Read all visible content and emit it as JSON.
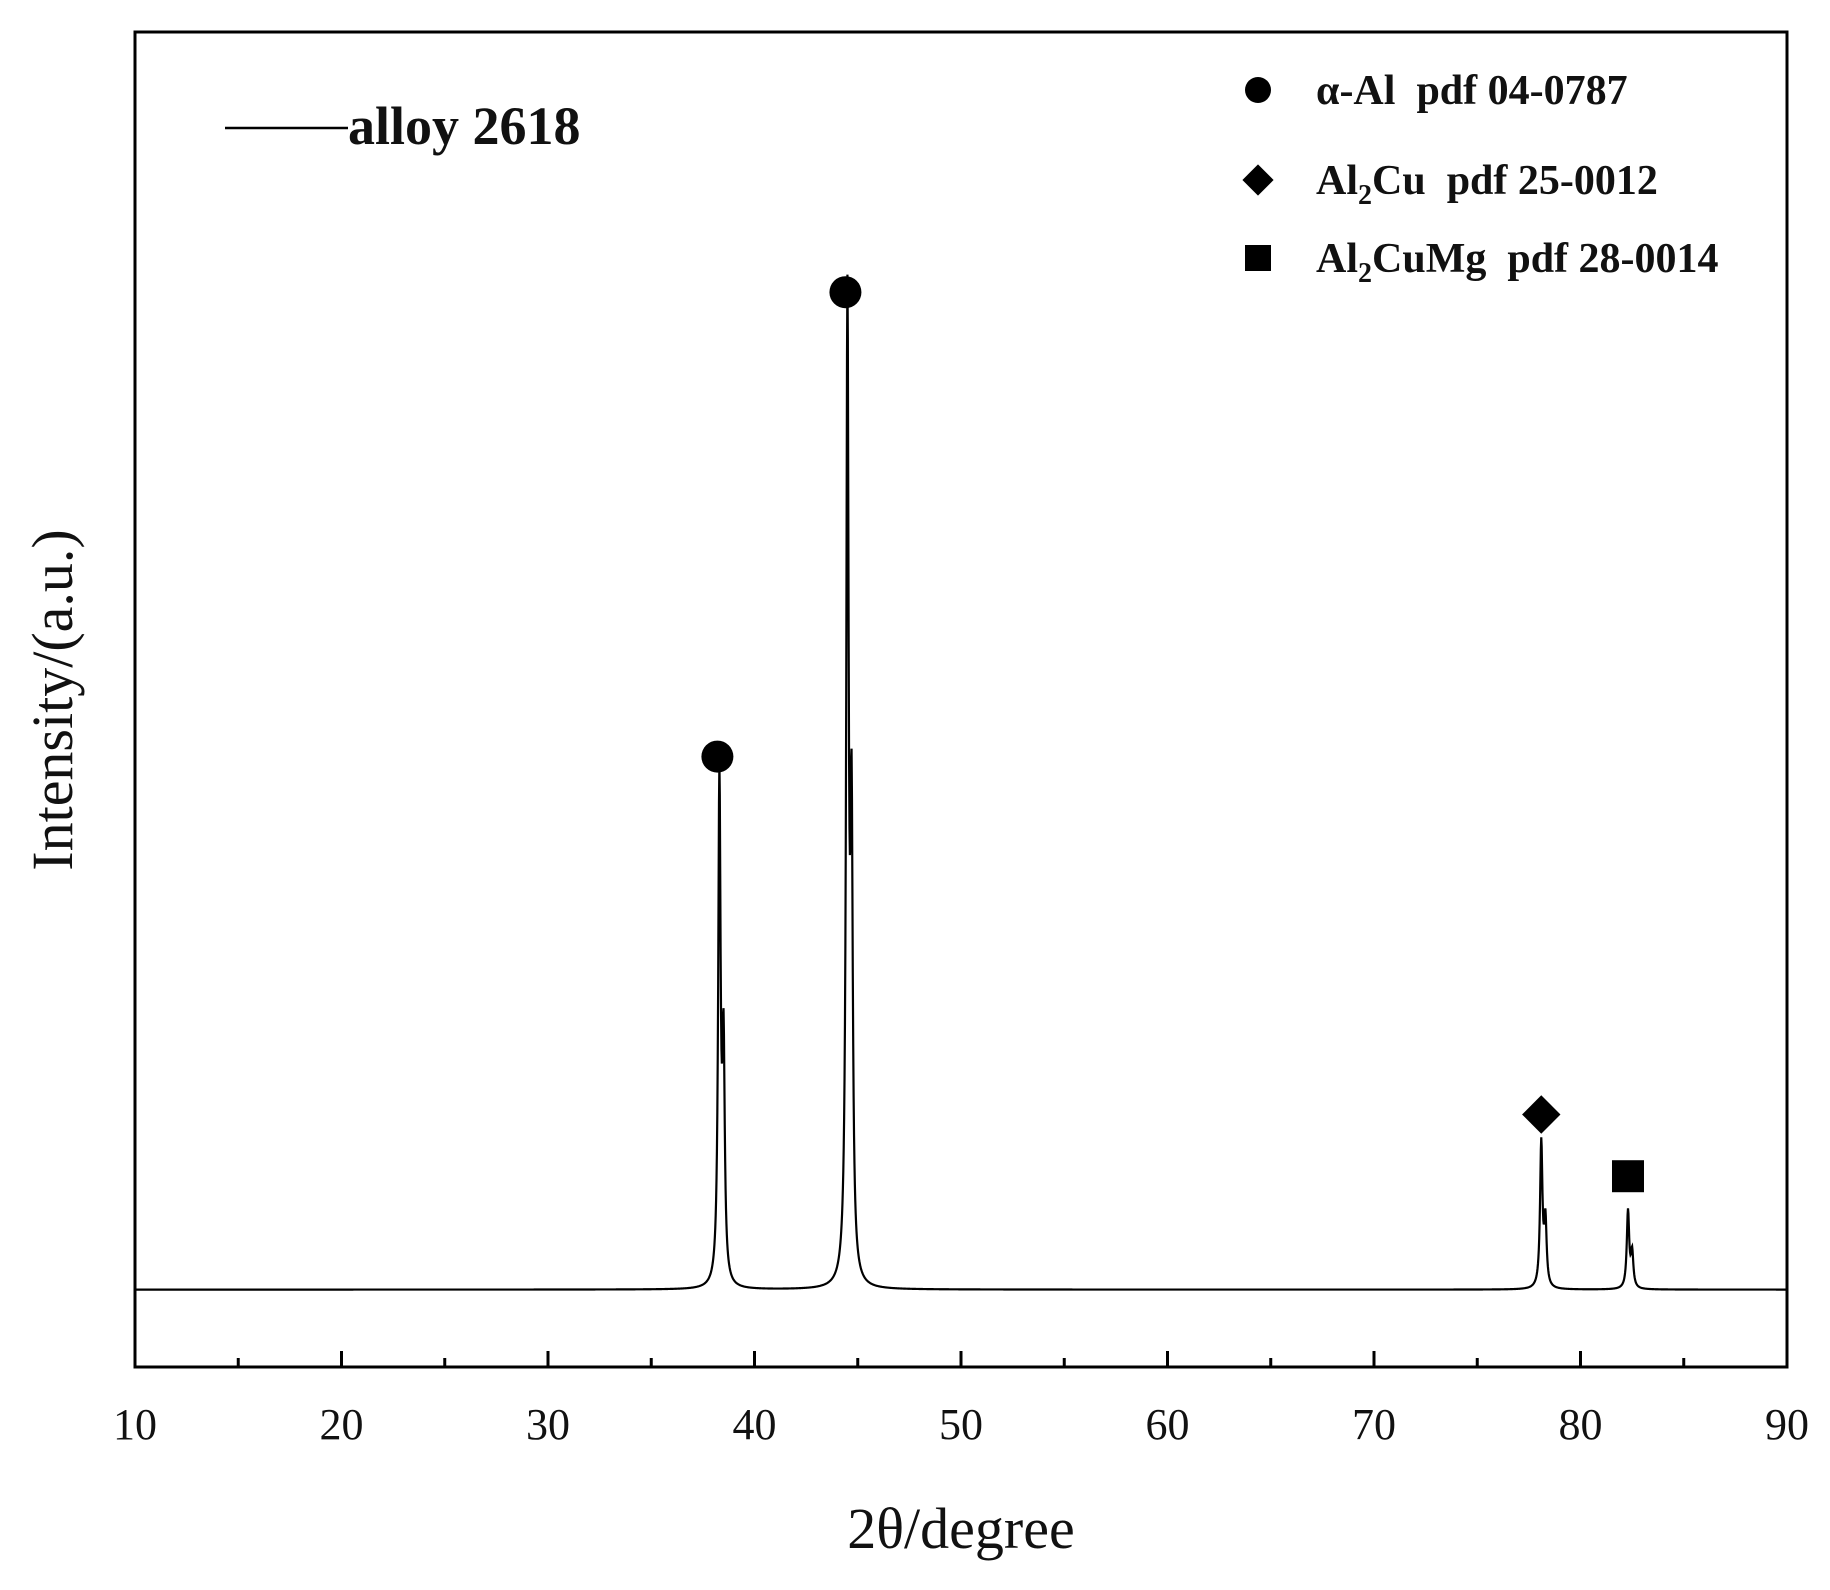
{
  "chart_data": {
    "type": "line",
    "xlabel": "2θ/degree",
    "ylabel": "Intensity/(a.u.)",
    "xlim": [
      10,
      90
    ],
    "ylim": [
      -0.08,
      1.3
    ],
    "xticks": [
      10,
      20,
      30,
      40,
      50,
      60,
      70,
      80,
      90
    ],
    "grid": false,
    "series": [
      {
        "name": "alloy 2618",
        "color": "#000000",
        "baseline": 0.0,
        "peaks": [
          {
            "x": 38.3,
            "y": 0.52
          },
          {
            "x": 44.5,
            "y": 1.0
          },
          {
            "x": 78.1,
            "y": 0.15
          },
          {
            "x": 82.3,
            "y": 0.08
          }
        ]
      }
    ],
    "legend": {
      "placement": "top-right",
      "entries": [
        {
          "marker": "circle",
          "base": "α-Al",
          "sub": "",
          "rest": "",
          "ref": "pdf 04-0787"
        },
        {
          "marker": "diamond",
          "base": "Al",
          "sub": "2",
          "rest": "Cu",
          "ref": "pdf 25-0012"
        },
        {
          "marker": "square",
          "base": "Al",
          "sub": "2",
          "rest": "CuMg",
          "ref": "pdf 28-0014"
        }
      ]
    },
    "peak_markers": [
      {
        "x": 38.3,
        "marker": "circle",
        "phase": "α-Al"
      },
      {
        "x": 44.5,
        "marker": "circle",
        "phase": "α-Al"
      },
      {
        "x": 78.1,
        "marker": "diamond",
        "phase": "Al2Cu"
      },
      {
        "x": 82.3,
        "marker": "square",
        "phase": "Al2CuMg"
      }
    ]
  }
}
